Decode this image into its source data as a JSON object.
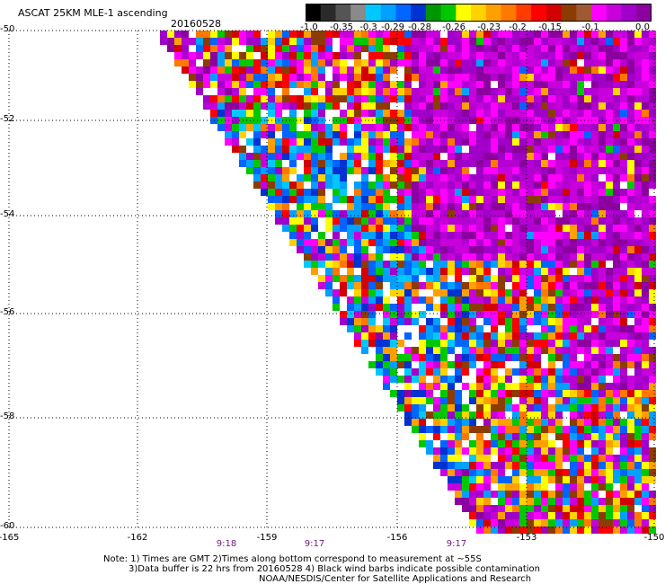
{
  "title": "ASCAT 25KM MLE-1 ascending",
  "date": "20160528",
  "colorbar": {
    "labels": [
      "-1.0",
      "-0.35",
      "-0.3",
      "-0.29",
      "-0.28",
      "-0.26",
      "-0.23",
      "-0.2",
      "-0.15",
      "-0.1",
      "0.0"
    ],
    "colors": [
      "#000000",
      "#2a2a2a",
      "#555555",
      "#8a8a8a",
      "#00c8ff",
      "#00a0ff",
      "#0064ff",
      "#0032d2",
      "#009600",
      "#00c800",
      "#ffff00",
      "#ffd200",
      "#ffa000",
      "#ff7800",
      "#ff3c00",
      "#ff0000",
      "#d20000",
      "#8c3c00",
      "#a05a32",
      "#ff00ff",
      "#c800dc",
      "#a000c8",
      "#8c00a0"
    ]
  },
  "lat_labels": [
    "-50",
    "-52",
    "-54",
    "-56",
    "-58",
    "-60"
  ],
  "lon_labels": [
    "-165",
    "-162",
    "-159",
    "-156",
    "-153",
    "-150"
  ],
  "time_labels": [
    "9:18",
    "9:17",
    "9:17"
  ],
  "notes": {
    "line1": "Note: 1) Times are GMT 2)Times along bottom correspond to measurement at ~55S",
    "line2": "3)Data buffer is 22 hrs from 20160528 4) Black wind barbs indicate possible contamination",
    "line3": "NOAA/NESDIS/Center for Satellite Applications and Research"
  }
}
